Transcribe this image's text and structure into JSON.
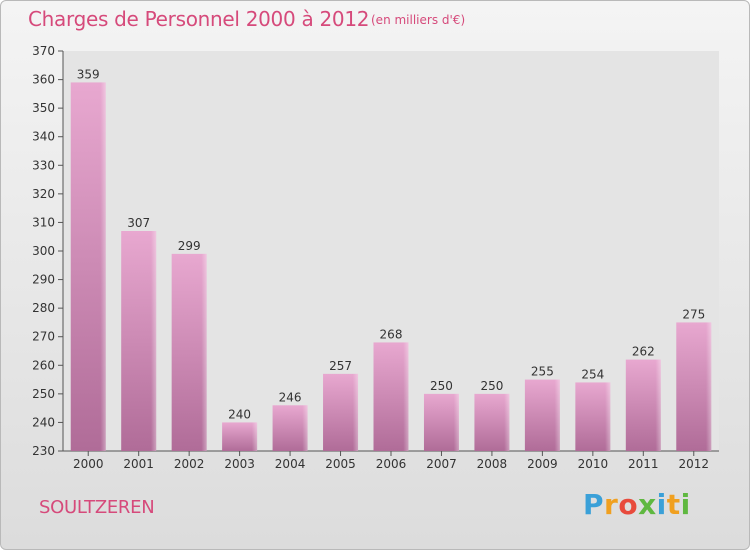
{
  "header": {
    "title": "Charges de Personnel 2000 à 2012",
    "subtitle": "(en milliers d'€)"
  },
  "footer": {
    "city": "SOULTZEREN",
    "brand_letters": [
      "P",
      "r",
      "o",
      "x",
      "i",
      "t",
      "i"
    ],
    "brand_colors": [
      "#3aa0d8",
      "#f0a020",
      "#e84a3c",
      "#5fb840",
      "#3aa0d8",
      "#f0a020",
      "#5fb840"
    ]
  },
  "colors": {
    "bar_top": "#e8a8d0",
    "bar_bottom": "#b06c98",
    "text": "#333333",
    "accent": "#d64a7b"
  },
  "chart_data": {
    "type": "bar",
    "categories": [
      "2000",
      "2001",
      "2002",
      "2003",
      "2004",
      "2005",
      "2006",
      "2007",
      "2008",
      "2009",
      "2010",
      "2011",
      "2012"
    ],
    "values": [
      359,
      307,
      299,
      240,
      246,
      257,
      268,
      250,
      250,
      255,
      254,
      262,
      275
    ],
    "title": "Charges de Personnel 2000 à 2012",
    "subtitle": "(en milliers d'€)",
    "xlabel": "",
    "ylabel": "",
    "ylim": [
      230,
      370
    ],
    "yticks": [
      230,
      240,
      250,
      260,
      270,
      280,
      290,
      300,
      310,
      320,
      330,
      340,
      350,
      360,
      370
    ],
    "grid": false,
    "data_labels": true
  }
}
